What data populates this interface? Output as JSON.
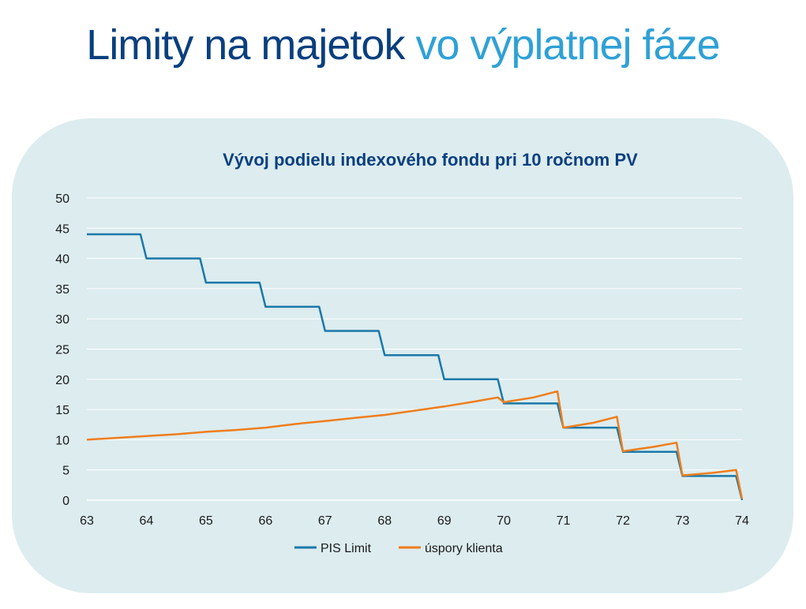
{
  "header": {
    "title_part1": "Limity na majetok",
    "title_part2": "vo výplatnej fáze",
    "title_part1_color": "#0a3f7f",
    "title_part2_color": "#2fa1d6"
  },
  "chart_data": {
    "type": "line",
    "title": "Vývoj podielu indexového fondu pri 10 ročnom PV",
    "xlabel": "",
    "ylabel": "",
    "xlim": [
      63,
      74
    ],
    "ylim": [
      0,
      50
    ],
    "x_ticks": [
      "63",
      "64",
      "65",
      "66",
      "67",
      "68",
      "69",
      "70",
      "71",
      "72",
      "73",
      "74"
    ],
    "y_ticks": [
      "0",
      "5",
      "10",
      "15",
      "20",
      "25",
      "30",
      "35",
      "40",
      "45",
      "50"
    ],
    "grid": true,
    "legend_position": "bottom",
    "series": [
      {
        "name": "PIS Limit",
        "color": "#1a78a8",
        "points": [
          [
            63.0,
            44
          ],
          [
            63.9,
            44
          ],
          [
            64.0,
            40
          ],
          [
            64.9,
            40
          ],
          [
            65.0,
            36
          ],
          [
            65.9,
            36
          ],
          [
            66.0,
            32
          ],
          [
            66.9,
            32
          ],
          [
            67.0,
            28
          ],
          [
            67.9,
            28
          ],
          [
            68.0,
            24
          ],
          [
            68.9,
            24
          ],
          [
            69.0,
            20
          ],
          [
            69.9,
            20
          ],
          [
            70.0,
            16
          ],
          [
            70.9,
            16
          ],
          [
            71.0,
            12
          ],
          [
            71.9,
            12
          ],
          [
            72.0,
            8
          ],
          [
            72.9,
            8
          ],
          [
            73.0,
            4
          ],
          [
            73.9,
            4
          ],
          [
            74.0,
            0
          ]
        ]
      },
      {
        "name": "úspory klienta",
        "color": "#f07d1a",
        "points": [
          [
            63.0,
            10.0
          ],
          [
            63.5,
            10.3
          ],
          [
            64.0,
            10.6
          ],
          [
            64.5,
            10.9
          ],
          [
            65.0,
            11.3
          ],
          [
            65.5,
            11.6
          ],
          [
            66.0,
            12.0
          ],
          [
            66.5,
            12.6
          ],
          [
            67.0,
            13.1
          ],
          [
            67.5,
            13.6
          ],
          [
            68.0,
            14.1
          ],
          [
            68.5,
            14.8
          ],
          [
            69.0,
            15.5
          ],
          [
            69.5,
            16.3
          ],
          [
            69.9,
            17.0
          ],
          [
            70.0,
            16.2
          ],
          [
            70.5,
            17.0
          ],
          [
            70.9,
            18.0
          ],
          [
            71.0,
            12.0
          ],
          [
            71.5,
            12.8
          ],
          [
            71.9,
            13.8
          ],
          [
            72.0,
            8.1
          ],
          [
            72.5,
            8.8
          ],
          [
            72.9,
            9.5
          ],
          [
            73.0,
            4.1
          ],
          [
            73.5,
            4.5
          ],
          [
            73.9,
            5.0
          ],
          [
            74.0,
            0.2
          ]
        ]
      }
    ]
  }
}
